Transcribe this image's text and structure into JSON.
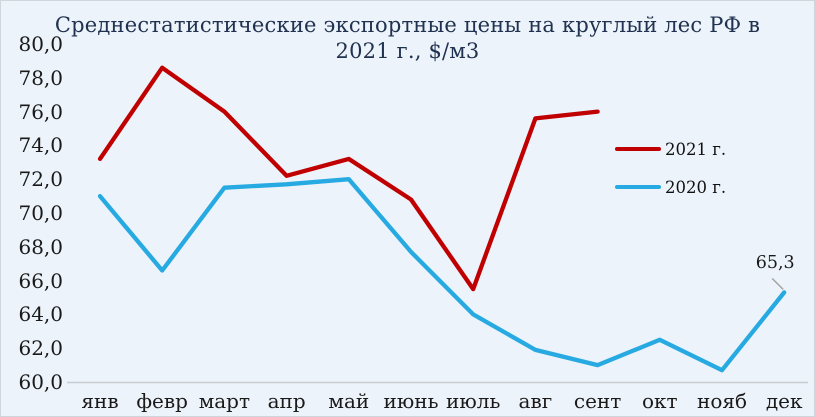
{
  "chart_data": {
    "type": "line",
    "title": "Среднестатистические экспортные цены на круглый лес РФ в 2021 г., $/м3",
    "title_lines": [
      "Среднестатистические экспортные цены на круглый лес РФ в",
      "2021 г., $/м3"
    ],
    "categories": [
      "янв",
      "февр",
      "март",
      "апр",
      "май",
      "июнь",
      "июль",
      "авг",
      "сент",
      "окт",
      "нояб",
      "дек"
    ],
    "series": [
      {
        "name": "2021 г.",
        "color": "#C00000",
        "values": [
          73.2,
          78.6,
          76.0,
          72.2,
          73.2,
          70.8,
          65.5,
          75.6,
          76.0
        ]
      },
      {
        "name": "2020 г.",
        "color": "#27AAE1",
        "values": [
          71.0,
          66.6,
          71.5,
          71.7,
          72.0,
          67.7,
          64.0,
          61.9,
          61.0,
          62.5,
          60.7,
          65.3
        ]
      }
    ],
    "ylim": [
      60,
      80
    ],
    "ytick_step": 2,
    "ytick_labels": [
      "80,0",
      "78,0",
      "76,0",
      "74,0",
      "72,0",
      "70,0",
      "68,0",
      "66,0",
      "64,0",
      "62,0",
      "60,0"
    ],
    "grid": false,
    "legend_position": "right-middle",
    "annotation": {
      "text": "65,3",
      "series": "2020 г.",
      "category": "дек",
      "value": 65.3
    }
  },
  "colors": {
    "background": "#EDF3FA",
    "border": "#D2D6DB",
    "title_text": "#20324F",
    "axis_text": "#1A1A1A",
    "axis_line": "#C7CCD3",
    "leader_line": "#A6A6A6"
  }
}
